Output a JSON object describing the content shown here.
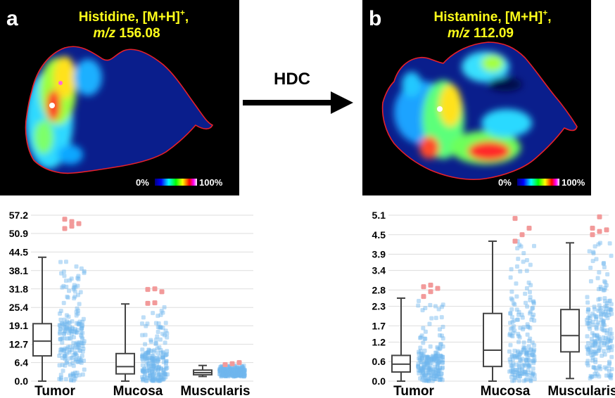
{
  "panel_a": {
    "label": "a",
    "title_line1": "Histidine, [M+H]",
    "title_sup": "+",
    "title_line1_end": ",",
    "title_mz_italic": "m/z",
    "title_mz_value": "156.08",
    "scale_min": "0%",
    "scale_max": "100%"
  },
  "panel_b": {
    "label": "b",
    "title_line1": "Histamine, [M+H]",
    "title_sup": "+",
    "title_line1_end": ",",
    "title_mz_italic": "m/z",
    "title_mz_value": "112.09",
    "scale_min": "0%",
    "scale_max": "100%"
  },
  "arrow": {
    "label": "HDC"
  },
  "colors": {
    "background": "#000000",
    "tissue_base": "#0a1e8c",
    "tissue_outline": "#e8202a",
    "title": "#ffff1a",
    "box": "#444444",
    "points": "#6fb6ee",
    "outliers": "#f29a9a",
    "grid": "#dddddd"
  },
  "chart_data": [
    {
      "type": "box",
      "categories": [
        "Tumor",
        "Mucosa",
        "Muscularis"
      ],
      "y_ticks": [
        "0.0",
        "6.4",
        "12.7",
        "19.1",
        "25.4",
        "31.8",
        "38.1",
        "44.5",
        "50.9",
        "57.2"
      ],
      "ylim": [
        0,
        57.2
      ],
      "grid": true,
      "boxes": [
        {
          "category": "Tumor",
          "min": 0,
          "q1": 8.7,
          "median": 13.8,
          "q3": 19.8,
          "max": 42.7,
          "outliers": [
            52.6,
            53.4,
            54.3,
            55.8,
            55.0
          ]
        },
        {
          "category": "Mucosa",
          "min": 0,
          "q1": 2.5,
          "median": 5.0,
          "q3": 9.5,
          "max": 26.6,
          "outliers": [
            26.8,
            27.0,
            30.8,
            31.6,
            31.8
          ]
        },
        {
          "category": "Muscularis",
          "min": 1.6,
          "q1": 2.2,
          "median": 2.9,
          "q3": 3.8,
          "max": 5.4,
          "outliers": [
            5.7,
            6.0,
            6.4
          ]
        }
      ]
    },
    {
      "type": "box",
      "categories": [
        "Tumor",
        "Mucosa",
        "Muscularis"
      ],
      "y_ticks": [
        "0.0",
        "0.6",
        "1.2",
        "1.7",
        "2.3",
        "2.8",
        "3.4",
        "3.9",
        "4.5",
        "5.1"
      ],
      "ylim": [
        0,
        5.1
      ],
      "grid": true,
      "boxes": [
        {
          "category": "Tumor",
          "min": 0,
          "q1": 0.28,
          "median": 0.52,
          "q3": 0.79,
          "max": 2.55,
          "outliers": [
            2.6,
            2.75,
            2.85,
            2.9,
            2.95
          ]
        },
        {
          "category": "Mucosa",
          "min": 0,
          "q1": 0.45,
          "median": 0.95,
          "q3": 2.08,
          "max": 4.3,
          "outliers": [
            4.3,
            4.5,
            4.7,
            5.0
          ]
        },
        {
          "category": "Muscularis",
          "min": 0.08,
          "q1": 0.9,
          "median": 1.4,
          "q3": 2.2,
          "max": 4.25,
          "outliers": [
            4.5,
            4.6,
            4.65,
            4.7,
            5.05
          ]
        }
      ]
    }
  ]
}
